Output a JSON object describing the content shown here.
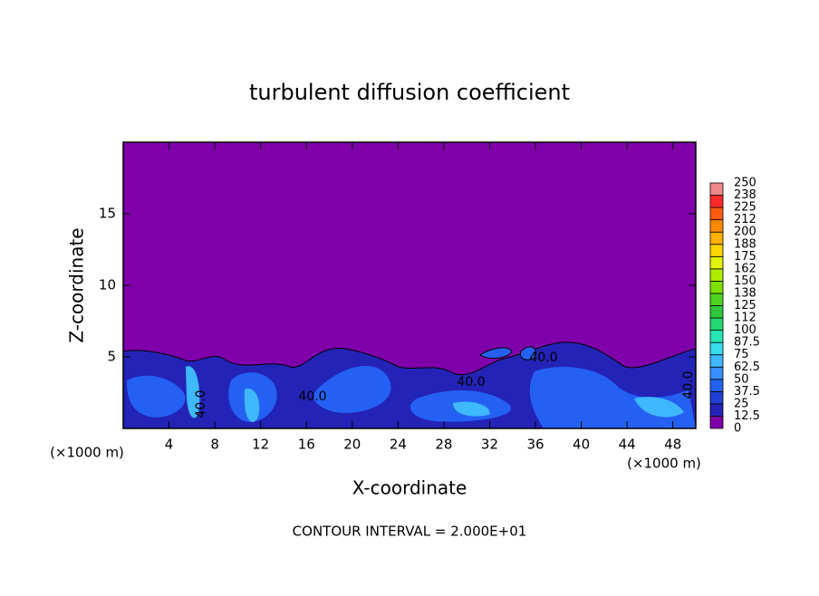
{
  "chart_data": {
    "type": "contour",
    "title": "turbulent diffusion coefficient",
    "x_label": "X-coordinate",
    "y_label": "Z-coordinate",
    "x_unit": "(×1000 m)",
    "y_unit": "(×1000 m)",
    "footer": "CONTOUR INTERVAL = 2.000E+01",
    "contour_labels": [
      "40.0",
      "40.0",
      "40.0",
      "40.0",
      "40.0"
    ],
    "xlim": [
      0,
      50
    ],
    "xticks": [
      4,
      8,
      12,
      16,
      20,
      24,
      28,
      32,
      36,
      40,
      44,
      48
    ],
    "ylim": [
      0,
      20
    ],
    "yticks": [
      5,
      10,
      15
    ],
    "colorbar": {
      "levels": [
        0,
        12.5,
        25,
        37.5,
        50,
        62.5,
        75,
        87.5,
        100,
        112,
        125,
        138,
        150,
        162,
        175,
        188,
        200,
        212,
        225,
        238,
        250
      ],
      "colors": [
        "#7f00aa",
        "#2323b8",
        "#1f3fd6",
        "#2461f2",
        "#3a8cff",
        "#3eb8ff",
        "#36dcec",
        "#26e6b4",
        "#22d870",
        "#2ec83a",
        "#4cd41e",
        "#7ee000",
        "#b0ec00",
        "#e2f200",
        "#ffd400",
        "#ffb000",
        "#ff8a00",
        "#ff5a10",
        "#ff2a2a",
        "#f08a8a"
      ]
    }
  }
}
